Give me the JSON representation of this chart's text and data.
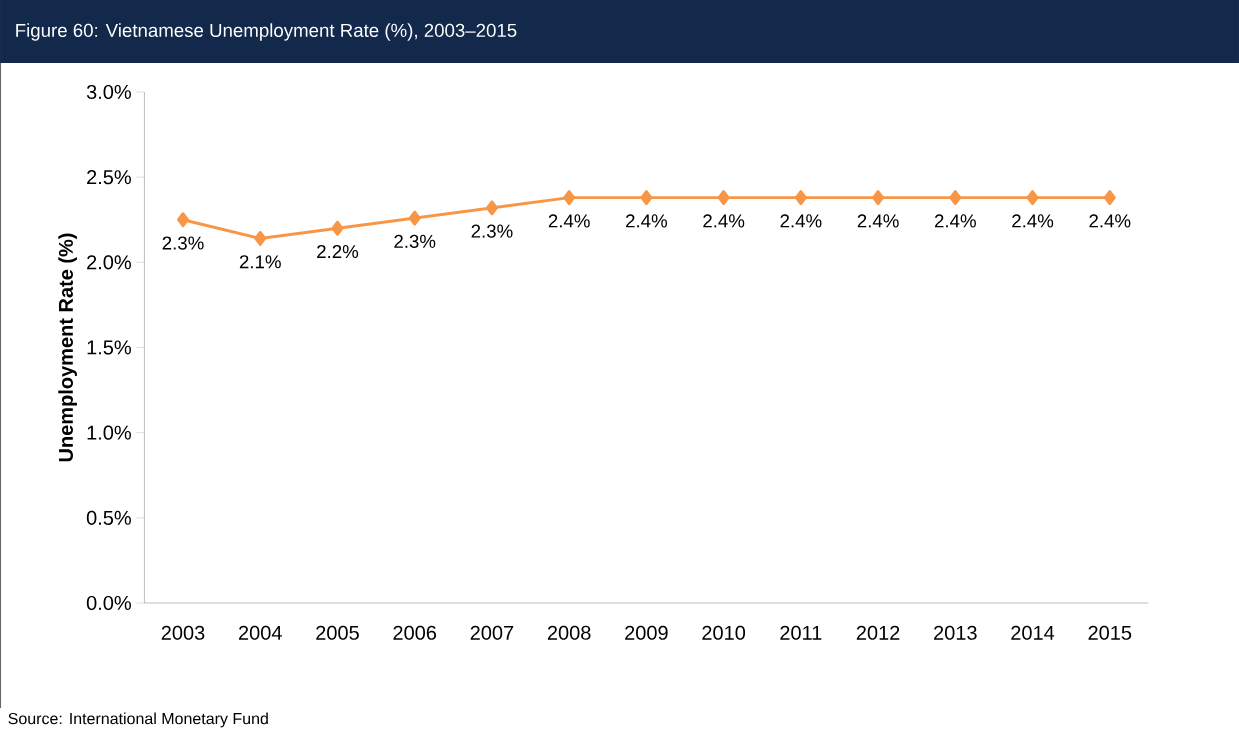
{
  "chart_data": {
    "type": "line",
    "title": "Figure 60: Vietnamese Unemployment Rate (%), 2003–2015",
    "ylabel": "Unemployment Rate (%)",
    "categories": [
      "2003",
      "2004",
      "2005",
      "2006",
      "2007",
      "2008",
      "2009",
      "2010",
      "2011",
      "2012",
      "2013",
      "2014",
      "2015"
    ],
    "series": [
      {
        "color": "#f79646",
        "values": [
          2.25,
          2.14,
          2.2,
          2.26,
          2.32,
          2.38,
          2.38,
          2.38,
          2.38,
          2.38,
          2.38,
          2.38,
          2.38
        ],
        "value_labels": [
          "2.3%",
          "2.1%",
          "2.2%",
          "2.3%",
          "2.3%",
          "2.4%",
          "2.4%",
          "2.4%",
          "2.4%",
          "2.4%",
          "2.4%",
          "2.4%",
          "2.4%"
        ]
      }
    ],
    "ylim": [
      0,
      3.0
    ],
    "yticks": [
      {
        "value": 0,
        "label": "0.0%"
      },
      {
        "value": 0.5,
        "label": "0.5%"
      },
      {
        "value": 1.0,
        "label": "1.0%"
      },
      {
        "value": 1.5,
        "label": "1.5%"
      },
      {
        "value": 2.0,
        "label": "2.0%"
      },
      {
        "value": 2.5,
        "label": "2.5%"
      },
      {
        "value": 3.0,
        "label": "3.0%"
      }
    ],
    "marker": "diamond",
    "line_style": "solid",
    "grid": false,
    "annotations": [
      "Source: International Monetary Fund"
    ]
  }
}
